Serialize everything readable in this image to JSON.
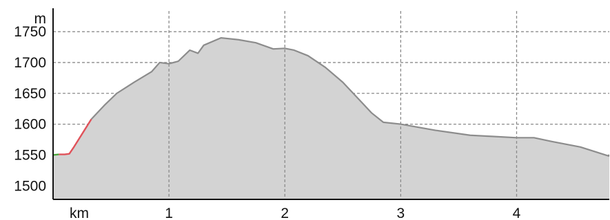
{
  "chart_data": {
    "type": "area",
    "ylabel": "m",
    "xlabel": "km",
    "x_unit_label": "km",
    "y_unit_label": "m",
    "xlim": [
      0,
      4.8
    ],
    "ylim": [
      1478,
      1788
    ],
    "grid": true,
    "x_ticks": [
      1,
      2,
      3,
      4
    ],
    "x_tick_labels": [
      "1",
      "2",
      "3",
      "4"
    ],
    "y_ticks": [
      1500,
      1550,
      1600,
      1650,
      1700,
      1750
    ],
    "y_tick_labels": [
      "1500",
      "1550",
      "1600",
      "1650",
      "1700",
      "1750"
    ],
    "series": [
      {
        "values": [
          [
            0.0,
            1550
          ],
          [
            0.05,
            1551
          ],
          [
            0.1,
            1551
          ],
          [
            0.14,
            1552
          ],
          [
            0.18,
            1563
          ],
          [
            0.22,
            1575
          ],
          [
            0.27,
            1590
          ],
          [
            0.33,
            1608
          ],
          [
            0.45,
            1632
          ],
          [
            0.55,
            1650
          ],
          [
            0.7,
            1668
          ],
          [
            0.85,
            1685
          ],
          [
            0.92,
            1700
          ],
          [
            1.0,
            1698
          ],
          [
            1.08,
            1702
          ],
          [
            1.18,
            1720
          ],
          [
            1.25,
            1715
          ],
          [
            1.3,
            1728
          ],
          [
            1.45,
            1740
          ],
          [
            1.6,
            1737
          ],
          [
            1.75,
            1732
          ],
          [
            1.9,
            1722
          ],
          [
            2.0,
            1723
          ],
          [
            2.08,
            1720
          ],
          [
            2.2,
            1711
          ],
          [
            2.35,
            1692
          ],
          [
            2.5,
            1668
          ],
          [
            2.65,
            1638
          ],
          [
            2.75,
            1618
          ],
          [
            2.85,
            1603
          ],
          [
            3.0,
            1600
          ],
          [
            3.15,
            1595
          ],
          [
            3.3,
            1590
          ],
          [
            3.6,
            1582
          ],
          [
            3.8,
            1580
          ],
          [
            4.0,
            1578
          ],
          [
            4.15,
            1578
          ],
          [
            4.3,
            1572
          ],
          [
            4.55,
            1563
          ],
          [
            4.8,
            1548
          ]
        ]
      }
    ],
    "highlight_range": [
      0.05,
      0.33
    ],
    "colors": {
      "fill": "#d3d3d3",
      "line": "#8c8c8c",
      "highlight_line": "#e0525a",
      "start_line": "#4aa63c",
      "grid": "#8a8a8a",
      "axis": "#111111"
    }
  }
}
